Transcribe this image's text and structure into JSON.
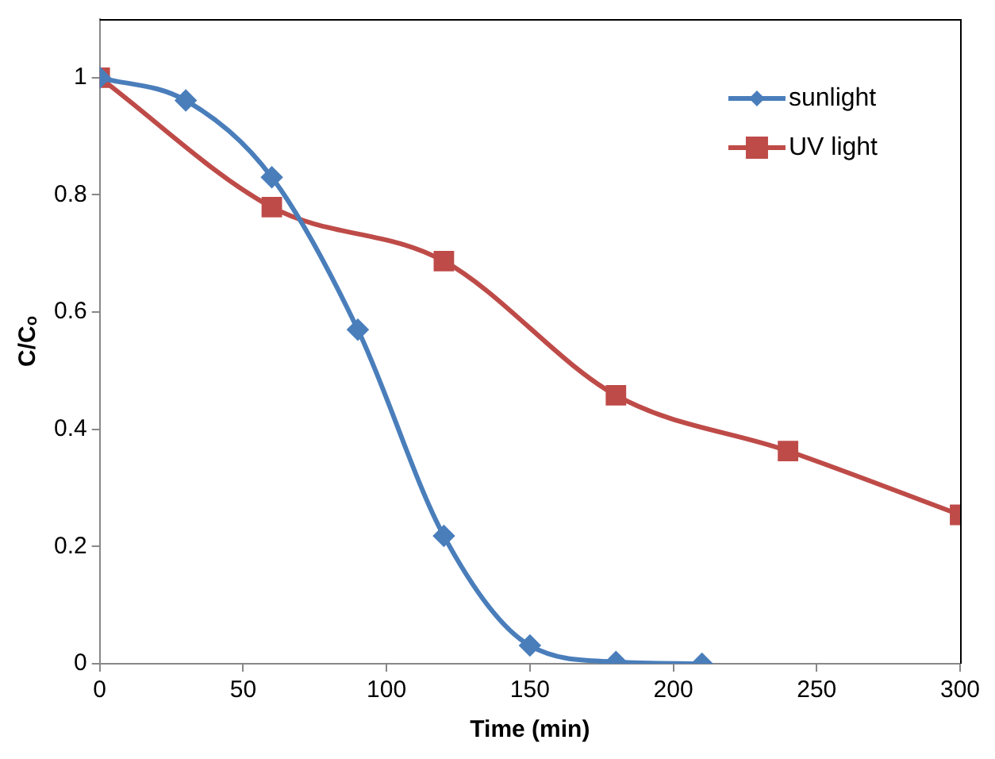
{
  "chart_data": {
    "type": "line",
    "xlabel": "Time (min)",
    "ylabel": "C/Cₒ",
    "xlim": [
      0,
      300
    ],
    "xticks": [
      0,
      50,
      100,
      150,
      200,
      250,
      300
    ],
    "ylim": [
      0,
      1.1
    ],
    "yticks": [
      0,
      0.2,
      0.4,
      0.6,
      0.8,
      1
    ],
    "grid": false,
    "legend": "top right",
    "series": [
      {
        "name": "sunlight",
        "color": "#4a7ebb",
        "marker": "diamond",
        "x": [
          0,
          30,
          60,
          90,
          120,
          150,
          180,
          210
        ],
        "values": [
          1,
          0.961,
          0.83,
          0.57,
          0.218,
          0.031,
          0.003,
          0
        ]
      },
      {
        "name": "UV light",
        "color": "#be4b48",
        "marker": "square",
        "x": [
          0,
          60,
          120,
          180,
          240,
          300
        ],
        "values": [
          1,
          0.779,
          0.687,
          0.458,
          0.363,
          0.254
        ]
      }
    ]
  }
}
